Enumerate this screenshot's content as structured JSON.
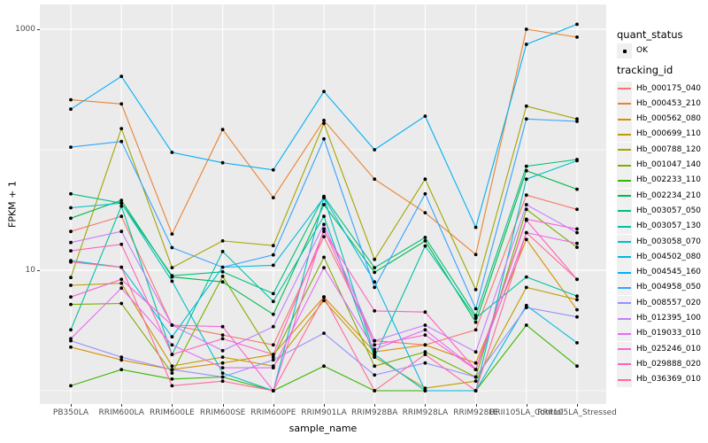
{
  "chart": {
    "y_axis_title": "FPKM + 1",
    "x_axis_title": "sample_name"
  },
  "legend": {
    "quant_status": {
      "title": "quant_status",
      "items": [
        {
          "label": "OK",
          "marker": "black-point"
        }
      ]
    },
    "tracking": {
      "title": "tracking_id"
    }
  },
  "colors": {
    "panel_background": "#EBEBEB",
    "gridline": "#FFFFFF",
    "tick_text": "#4D4D4D",
    "point": "#000000",
    "legend_key_background": "#F0F0F0"
  },
  "chart_data": {
    "type": "line",
    "title": "",
    "xlabel": "sample_name",
    "ylabel": "FPKM + 1",
    "y_scale": "log10",
    "ylim": [
      0.8,
      1300
    ],
    "y_tick_labels": [
      "1000",
      "10"
    ],
    "y_tick_values": [
      1000,
      10
    ],
    "y_major_gridlines": [
      1000,
      10
    ],
    "y_minor_gridlines": [
      100,
      1
    ],
    "grid": "on",
    "legend_position": "right",
    "categories": [
      "PB350LA",
      "RRIM600LA",
      "RRIM600LE",
      "RRIM600SE",
      "RRIM600PE",
      "RRIM901LA",
      "RRIM928BA",
      "RRIM928LA",
      "RRIM928LE",
      "RRII105LA_Control",
      "RRII105LA_Stressed"
    ],
    "series": [
      {
        "name": "Hb_000175_040",
        "color": "#F8766D",
        "values": [
          21,
          28,
          3.5,
          2.9,
          2.4,
          19,
          2.6,
          2.4,
          3.2,
          42,
          32
        ]
      },
      {
        "name": "Hb_000453_210",
        "color": "#EA8331",
        "values": [
          260,
          240,
          20,
          147,
          40,
          175,
          57,
          30,
          13.5,
          1000,
          860
        ]
      },
      {
        "name": "Hb_000562_080",
        "color": "#D89000",
        "values": [
          2.3,
          1.8,
          1.5,
          1.7,
          2.0,
          6.0,
          2.1,
          2.4,
          1.7,
          18,
          4.7
        ]
      },
      {
        "name": "Hb_000699_110",
        "color": "#C09B00",
        "values": [
          7.5,
          7.8,
          1.6,
          1.9,
          1.6,
          5.6,
          1.9,
          1.05,
          1.2,
          7.2,
          5.7
        ]
      },
      {
        "name": "Hb_000788_120",
        "color": "#A3A500",
        "values": [
          8.7,
          150,
          10.5,
          17.5,
          16,
          165,
          12.3,
          57,
          6.9,
          230,
          180
        ]
      },
      {
        "name": "Hb_001047_140",
        "color": "#7CAE00",
        "values": [
          5.2,
          5.3,
          1.4,
          8.9,
          1.9,
          12.8,
          1.6,
          2.1,
          1.3,
          32,
          15.5
        ]
      },
      {
        "name": "Hb_002233_110",
        "color": "#39B600",
        "values": [
          1.1,
          1.5,
          1.25,
          1.3,
          1.0,
          1.6,
          1.0,
          1.0,
          1.0,
          3.5,
          1.6
        ]
      },
      {
        "name": "Hb_002234_210",
        "color": "#00BB4E",
        "values": [
          27,
          38,
          8.8,
          8.0,
          4.3,
          35,
          9.6,
          17.5,
          3.7,
          67,
          47
        ]
      },
      {
        "name": "Hb_003057_050",
        "color": "#00BF7D",
        "values": [
          43,
          36,
          9.0,
          9.7,
          6.4,
          41,
          10.5,
          18.7,
          4.2,
          73,
          83
        ]
      },
      {
        "name": "Hb_003057_130",
        "color": "#00C1A3",
        "values": [
          3.2,
          34,
          2.0,
          14.3,
          5.5,
          28,
          1.9,
          15.9,
          4.0,
          8.8,
          6.1
        ]
      },
      {
        "name": "Hb_003058_070",
        "color": "#00BFC4",
        "values": [
          33,
          36,
          8.1,
          1.4,
          1.0,
          40,
          2.0,
          1.0,
          1.0,
          57,
          81
        ]
      },
      {
        "name": "Hb_004502_080",
        "color": "#00BAE0",
        "values": [
          12,
          10.6,
          2.8,
          10.6,
          11.0,
          40,
          8.0,
          1.0,
          1.0,
          5.1,
          2.5
        ]
      },
      {
        "name": "Hb_004545_160",
        "color": "#00B0F6",
        "values": [
          217,
          406,
          95,
          78,
          68,
          304,
          100,
          190,
          22.7,
          750,
          1100
        ]
      },
      {
        "name": "Hb_004958_050",
        "color": "#35A2FF",
        "values": [
          105,
          117,
          15.4,
          10.6,
          13.4,
          123,
          7.2,
          43,
          4.8,
          180,
          172
        ]
      },
      {
        "name": "Hb_008557_020",
        "color": "#9590FF",
        "values": [
          2.6,
          1.9,
          1.5,
          1.3,
          1.8,
          3.0,
          1.35,
          1.7,
          1.3,
          4.9,
          4.1
        ]
      },
      {
        "name": "Hb_012395_100",
        "color": "#C77CFF",
        "values": [
          17,
          21,
          3.5,
          2.15,
          3.4,
          24,
          2.6,
          3.5,
          2.1,
          35,
          20.5
        ]
      },
      {
        "name": "Hb_019033_010",
        "color": "#E76BF3",
        "values": [
          2.7,
          7.1,
          2.4,
          1.55,
          1.55,
          10.5,
          2.2,
          3.2,
          1.5,
          20.5,
          16.7
        ]
      },
      {
        "name": "Hb_025246_010",
        "color": "#FA62DB",
        "values": [
          6.0,
          8.4,
          3.5,
          3.4,
          1.0,
          22,
          2.4,
          2.9,
          1.5,
          26.5,
          22
        ]
      },
      {
        "name": "Hb_029888_020",
        "color": "#FF62BC",
        "values": [
          14.5,
          16.4,
          2.0,
          2.7,
          2.0,
          21,
          4.6,
          4.5,
          1.5,
          26,
          8.4
        ]
      },
      {
        "name": "Hb_036369_010",
        "color": "#FF6A98",
        "values": [
          11.7,
          10.6,
          1.1,
          1.2,
          1.0,
          6.0,
          1.0,
          2.0,
          1.0,
          20.5,
          8.4
        ]
      }
    ]
  }
}
